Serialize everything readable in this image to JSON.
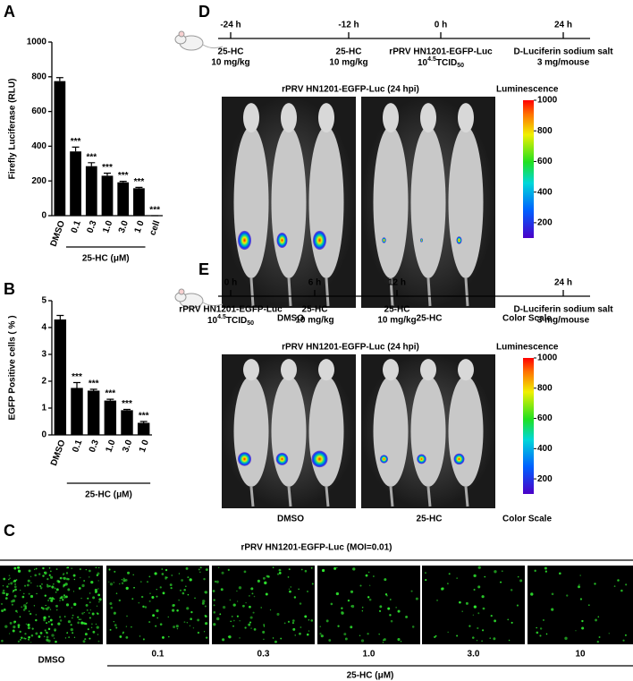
{
  "chart_data": [
    {
      "type": "bar",
      "panel": "A",
      "ylabel": "Firefly Luciferase (RLU)",
      "categories": [
        "DMSO",
        "0.1",
        "0.3",
        "1.0",
        "3.0",
        "1 0",
        "cell"
      ],
      "values": [
        775,
        370,
        285,
        230,
        192,
        158,
        0
      ],
      "errors": [
        20,
        25,
        20,
        15,
        6,
        5,
        0
      ],
      "significance": [
        null,
        "***",
        "***",
        "***",
        "***",
        "***",
        "***"
      ],
      "group_label": "25-HC (μM)",
      "color": "#000000",
      "ylim": [
        0,
        1000
      ],
      "yticks": [
        0,
        200,
        400,
        600,
        800,
        1000
      ]
    },
    {
      "type": "bar",
      "panel": "B",
      "ylabel": "EGFP  Positive  cells ( % )",
      "categories": [
        "DMSO",
        "0.1",
        "0.3",
        "1.0",
        "3.0",
        "1 0"
      ],
      "values": [
        4.3,
        1.75,
        1.65,
        1.28,
        0.92,
        0.45
      ],
      "errors": [
        0.15,
        0.2,
        0.05,
        0.05,
        0.03,
        0.05
      ],
      "significance": [
        null,
        "***",
        "***",
        "***",
        "***",
        "***"
      ],
      "group_label": "25-HC (μM)",
      "color": "#000000",
      "ylim": [
        0,
        5
      ],
      "yticks": [
        0,
        1,
        2,
        3,
        4,
        5
      ]
    }
  ],
  "timelines": [
    {
      "panel": "D",
      "steps": [
        {
          "tick": "-24 h",
          "lines": [
            "25-HC",
            "10 mg/kg"
          ]
        },
        {
          "tick": "-12 h",
          "lines": [
            "25-HC",
            "10 mg/kg"
          ]
        },
        {
          "tick": "0 h",
          "lines": [
            "rPRV HN1201-EGFP-Luc",
            {
              "base": "10",
              "sup": "4.5",
              "text": "TCID",
              "sub": "50"
            }
          ]
        },
        {
          "tick": "24 h",
          "lines": [
            "D-Luciferin sodium salt",
            "3 mg/mouse"
          ]
        }
      ],
      "image_title": "rPRV HN1201-EGFP-Luc (24 hpi)",
      "scale_title": "Luminescence",
      "scale_lim": [
        100,
        1000
      ],
      "scale_ticks": [
        200,
        400,
        600,
        800,
        1000
      ],
      "scale_caption": "Color Scale",
      "groups": [
        "DMSO",
        "25-HC"
      ]
    },
    {
      "panel": "E",
      "steps": [
        {
          "tick": "0 h",
          "lines": [
            "rPRV HN1201-EGFP-Luc",
            {
              "base": "10",
              "sup": "4.5",
              "text": "TCID",
              "sub": "50"
            }
          ]
        },
        {
          "tick": "6 h",
          "lines": [
            "25-HC",
            "10 mg/kg"
          ]
        },
        {
          "tick": "12 h",
          "lines": [
            "25-HC",
            "10 mg/kg"
          ]
        },
        {
          "tick": "24 h",
          "lines": [
            "D-Luciferin sodium salt",
            "3 mg/mouse"
          ]
        }
      ],
      "image_title": "rPRV HN1201-EGFP-Luc (24 hpi)",
      "scale_title": "Luminescence",
      "scale_lim": [
        100,
        1000
      ],
      "scale_ticks": [
        200,
        400,
        600,
        800,
        1000
      ],
      "scale_caption": "Color Scale",
      "groups": [
        "DMSO",
        "25-HC"
      ]
    }
  ],
  "micrographs": {
    "panel": "C",
    "title": "rPRV HN1201-EGFP-Luc (MOI=0.01)",
    "labels": [
      "DMSO",
      "0.1",
      "0.3",
      "1.0",
      "3.0",
      "10"
    ],
    "group_label": "25-HC (μM)"
  }
}
